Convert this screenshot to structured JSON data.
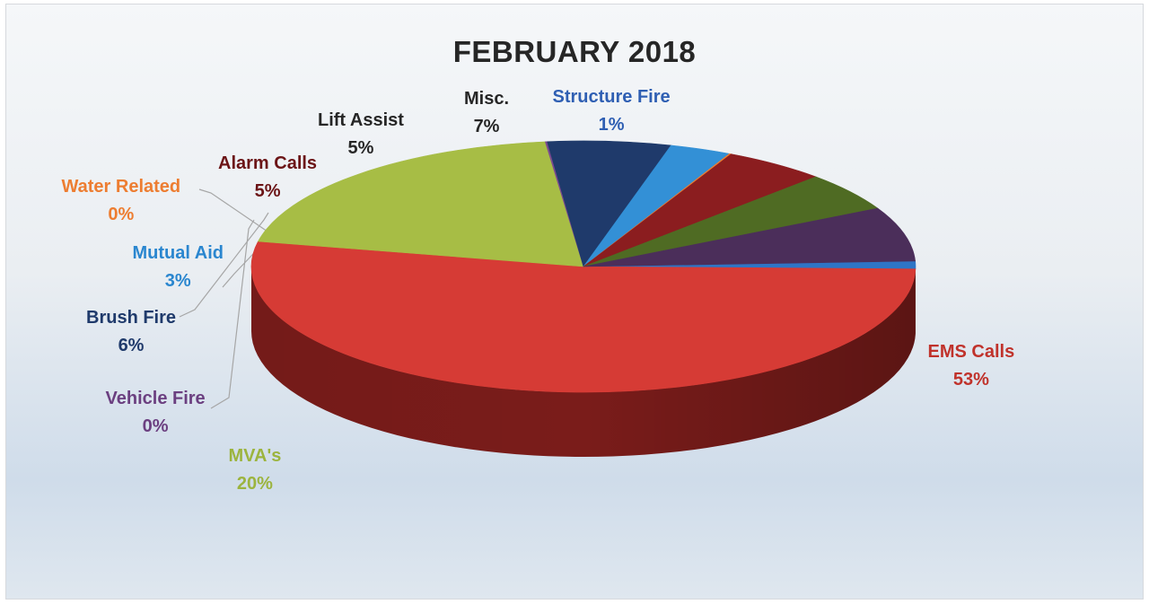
{
  "chart_data": {
    "type": "pie",
    "title": "FEBRUARY 2018",
    "slices": [
      {
        "label": "Structure Fire",
        "value": 1,
        "pct_label": "1%",
        "color": "#2e75c6",
        "dark": "#1d4f8c",
        "text_color": "#2f5fb3"
      },
      {
        "label": "EMS Calls",
        "value": 53,
        "pct_label": "53%",
        "color": "#d63b35",
        "dark": "#7a1c1a",
        "text_color": "#c0322b"
      },
      {
        "label": "MVA's",
        "value": 20,
        "pct_label": "20%",
        "color": "#a7bd45",
        "dark": "#7c8f2a",
        "text_color": "#9cb43e"
      },
      {
        "label": "Vehicle Fire",
        "value": 0,
        "pct_label": "0%",
        "color": "#7b4a8f",
        "dark": "#4a2a57",
        "text_color": "#6b3f80"
      },
      {
        "label": "Brush Fire",
        "value": 6,
        "pct_label": "6%",
        "color": "#1f3a6b",
        "dark": "#12234a",
        "text_color": "#1f3a6b"
      },
      {
        "label": "Mutual Aid",
        "value": 3,
        "pct_label": "3%",
        "color": "#3390d6",
        "dark": "#1f5f92",
        "text_color": "#2a86cf"
      },
      {
        "label": "Water Related",
        "value": 0,
        "pct_label": "0%",
        "color": "#ed7d31",
        "dark": "#a0521e",
        "text_color": "#ed7d31"
      },
      {
        "label": "Alarm Calls",
        "value": 5,
        "pct_label": "5%",
        "color": "#8b1d1f",
        "dark": "#5a1112",
        "text_color": "#6b1416"
      },
      {
        "label": "Lift Assist",
        "value": 5,
        "pct_label": "5%",
        "color": "#4f6b23",
        "dark": "#324515",
        "text_color": "#262626"
      },
      {
        "label": "Misc.",
        "value": 7,
        "pct_label": "7%",
        "color": "#4b2e5a",
        "dark": "#2e1b38",
        "text_color": "#262626"
      }
    ]
  }
}
